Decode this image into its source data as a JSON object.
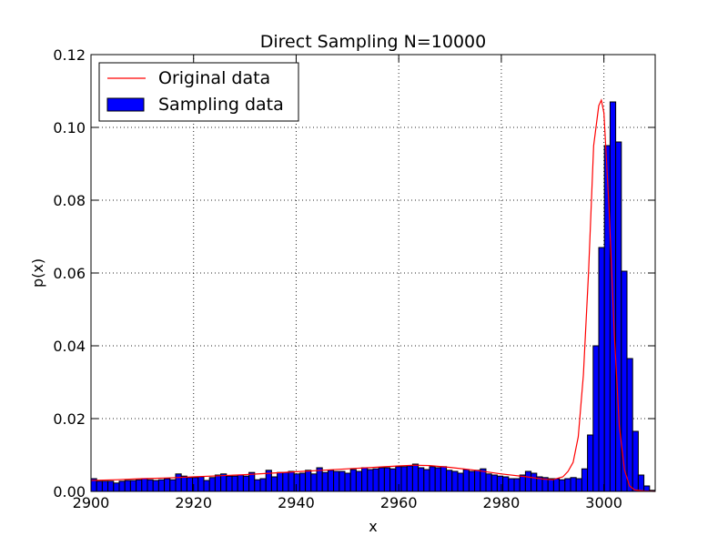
{
  "chart_data": {
    "type": "bar",
    "title": "Direct Sampling N=10000",
    "xlabel": "x",
    "ylabel": "p(x)",
    "xlim": [
      2900,
      3010
    ],
    "ylim": [
      0.0,
      0.12
    ],
    "x_ticks": [
      2900,
      2920,
      2940,
      2960,
      2980,
      3000
    ],
    "x_tick_labels": [
      "2900",
      "2920",
      "2940",
      "2960",
      "2980",
      "3000"
    ],
    "y_ticks": [
      0.0,
      0.02,
      0.04,
      0.06,
      0.08,
      0.1,
      0.12
    ],
    "y_tick_labels": [
      "0.00",
      "0.02",
      "0.04",
      "0.06",
      "0.08",
      "0.10",
      "0.12"
    ],
    "grid": true,
    "legend_position": "top-left",
    "series": [
      {
        "name": "Sampling data",
        "kind": "histogram",
        "color": "#0000ff",
        "edge_color": "#000000",
        "bin_start": 2900,
        "bin_width": 1.1,
        "values": [
          0.0035,
          0.0028,
          0.0028,
          0.0028,
          0.0023,
          0.0028,
          0.003,
          0.003,
          0.0032,
          0.0035,
          0.0032,
          0.003,
          0.0032,
          0.0035,
          0.0032,
          0.0048,
          0.0042,
          0.0038,
          0.0038,
          0.004,
          0.003,
          0.0038,
          0.0045,
          0.0048,
          0.0042,
          0.0042,
          0.0045,
          0.0042,
          0.0052,
          0.0032,
          0.0035,
          0.0058,
          0.004,
          0.0052,
          0.0052,
          0.0055,
          0.0048,
          0.005,
          0.0058,
          0.0048,
          0.0065,
          0.0052,
          0.0058,
          0.0055,
          0.0055,
          0.005,
          0.006,
          0.0055,
          0.0065,
          0.006,
          0.0062,
          0.0065,
          0.0065,
          0.0062,
          0.0068,
          0.0068,
          0.007,
          0.0075,
          0.0065,
          0.006,
          0.0068,
          0.0065,
          0.0068,
          0.0058,
          0.0055,
          0.005,
          0.006,
          0.0055,
          0.0058,
          0.0062,
          0.0048,
          0.0045,
          0.0042,
          0.004,
          0.0035,
          0.0035,
          0.0045,
          0.0055,
          0.005,
          0.004,
          0.0038,
          0.0035,
          0.0035,
          0.0032,
          0.0035,
          0.0038,
          0.0035,
          0.0062,
          0.0155,
          0.04,
          0.067,
          0.095,
          0.107,
          0.096,
          0.0605,
          0.0365,
          0.0165,
          0.0045,
          0.0015,
          0.0003,
          0.0001
        ]
      },
      {
        "name": "Original data",
        "kind": "line",
        "color": "#ff0000",
        "x": [
          2900,
          2905,
          2910,
          2915,
          2920,
          2925,
          2930,
          2935,
          2940,
          2945,
          2950,
          2955,
          2960,
          2963,
          2966,
          2970,
          2975,
          2980,
          2985,
          2988,
          2990,
          2992,
          2993,
          2994,
          2995,
          2996,
          2997,
          2998,
          2999,
          2999.5,
          3000,
          3001,
          3002,
          3003,
          3004,
          3005,
          3006,
          3008,
          3010
        ],
        "y": [
          0.003,
          0.0032,
          0.0035,
          0.0037,
          0.004,
          0.0043,
          0.0046,
          0.005,
          0.0054,
          0.0058,
          0.0062,
          0.0066,
          0.007,
          0.0072,
          0.0071,
          0.0066,
          0.0058,
          0.0048,
          0.004,
          0.0034,
          0.0032,
          0.004,
          0.0055,
          0.008,
          0.015,
          0.032,
          0.06,
          0.095,
          0.106,
          0.1075,
          0.104,
          0.078,
          0.044,
          0.018,
          0.006,
          0.0015,
          0.0004,
          0.0001,
          0.0
        ]
      }
    ]
  }
}
